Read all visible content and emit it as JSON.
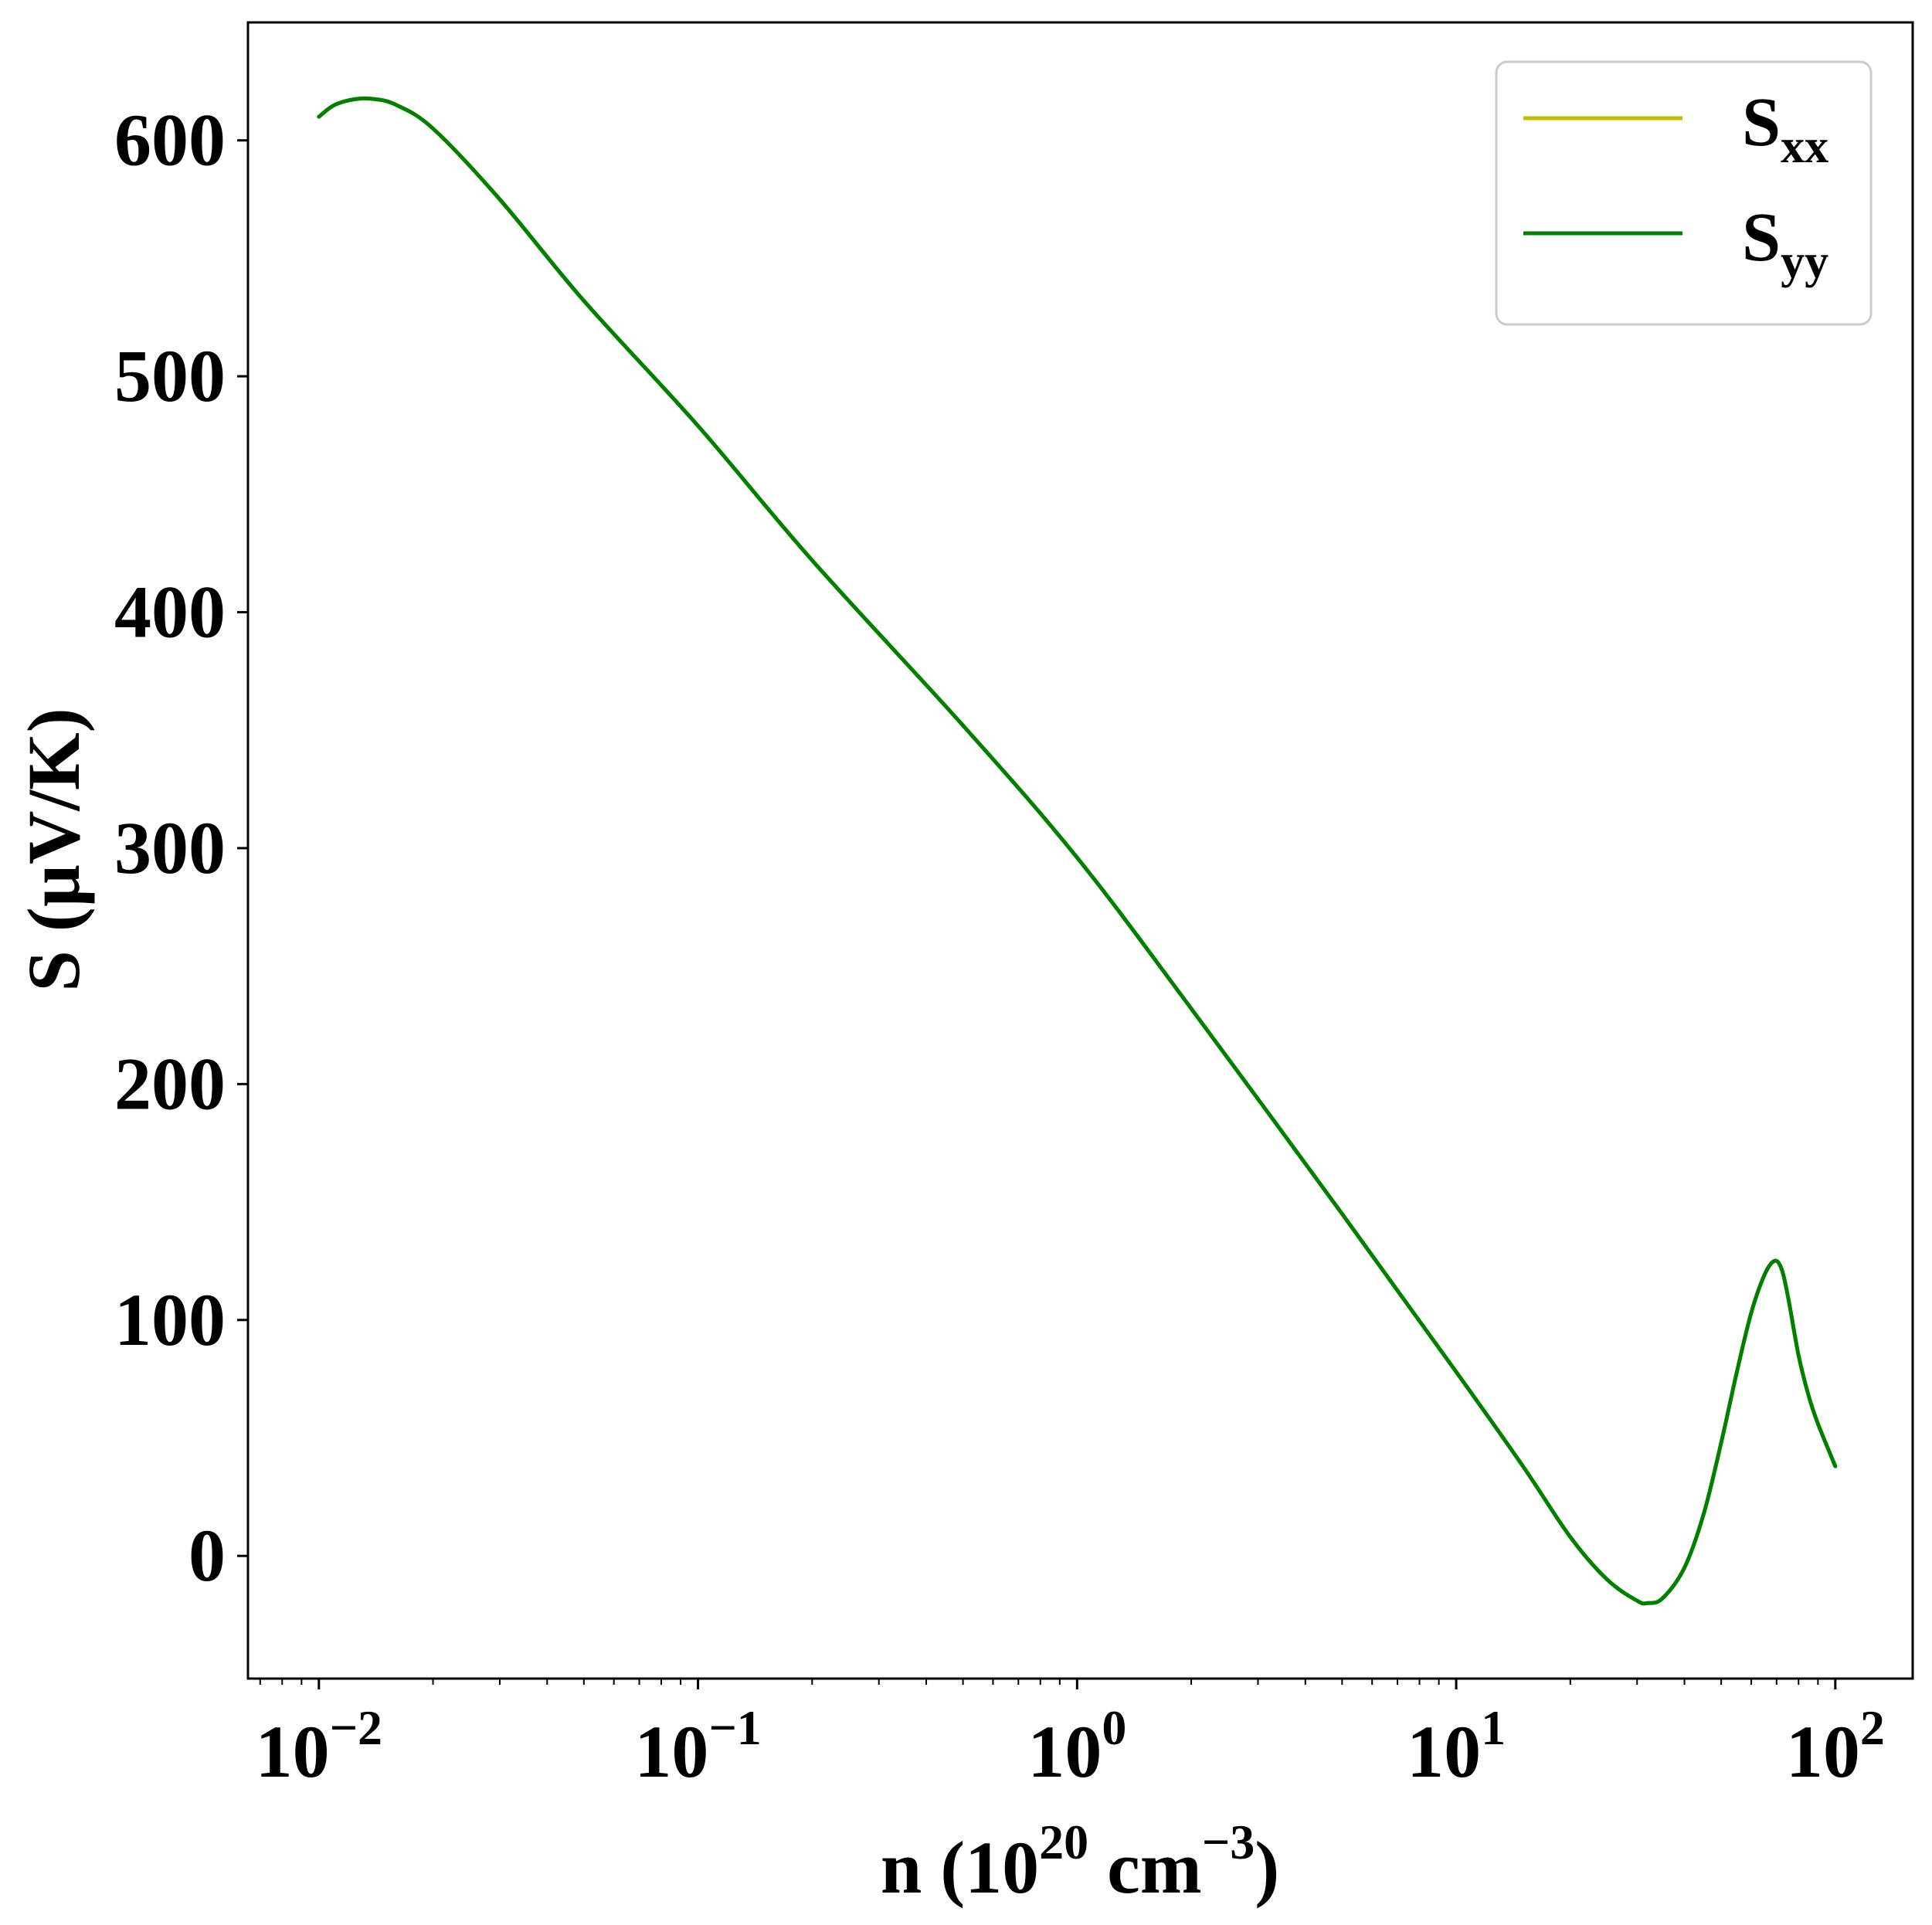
{
  "chart_data": {
    "type": "line",
    "x_scale": "log",
    "xlim": [
      0.0065,
      160
    ],
    "ylim": [
      -52,
      650
    ],
    "xlabel": {
      "main": "n (10",
      "sup1": "20",
      "mid": " cm",
      "sup2": "−3",
      "end": ")"
    },
    "ylabel": "S (µV/K)",
    "x_ticks": [
      {
        "value": 0.01,
        "base": "10",
        "exp": "−2"
      },
      {
        "value": 0.1,
        "base": "10",
        "exp": "−1"
      },
      {
        "value": 1,
        "base": "10",
        "exp": "0"
      },
      {
        "value": 10,
        "base": "10",
        "exp": "1"
      },
      {
        "value": 100,
        "base": "10",
        "exp": "2"
      }
    ],
    "y_ticks": [
      0,
      100,
      200,
      300,
      400,
      500,
      600
    ],
    "legend_position": "top-right",
    "series": [
      {
        "name": "S",
        "sub": "xx",
        "color": "#bfbf00",
        "x": [
          0.01,
          0.011,
          0.0125,
          0.014,
          0.016,
          0.02,
          0.03,
          0.05,
          0.1,
          0.2,
          0.5,
          1,
          2,
          5,
          10,
          15,
          20,
          25,
          30,
          32,
          35,
          40,
          45,
          50,
          55,
          60,
          65,
          69,
          72,
          75,
          80,
          85,
          90,
          100
        ],
        "y": [
          610,
          615,
          617.5,
          617.5,
          615,
          605,
          575,
          532,
          479,
          422,
          352,
          296,
          232,
          145,
          78,
          38,
          8,
          -10,
          -19,
          -20,
          -18,
          -5,
          18,
          48,
          78,
          103,
          119,
          125,
          122,
          110,
          85,
          68,
          56,
          38
        ]
      },
      {
        "name": "S",
        "sub": "yy",
        "color": "#008000",
        "x": [
          0.01,
          0.011,
          0.0125,
          0.014,
          0.016,
          0.02,
          0.03,
          0.05,
          0.1,
          0.2,
          0.5,
          1,
          2,
          5,
          10,
          15,
          20,
          25,
          30,
          32,
          35,
          40,
          45,
          50,
          55,
          60,
          65,
          69,
          72,
          75,
          80,
          85,
          90,
          100
        ],
        "y": [
          610,
          615,
          617.5,
          617.5,
          615,
          605,
          575,
          532,
          479,
          422,
          352,
          296,
          232,
          145,
          78,
          38,
          8,
          -10,
          -19,
          -20,
          -18,
          -5,
          18,
          48,
          78,
          103,
          119,
          125,
          122,
          110,
          85,
          68,
          56,
          38
        ]
      }
    ]
  }
}
